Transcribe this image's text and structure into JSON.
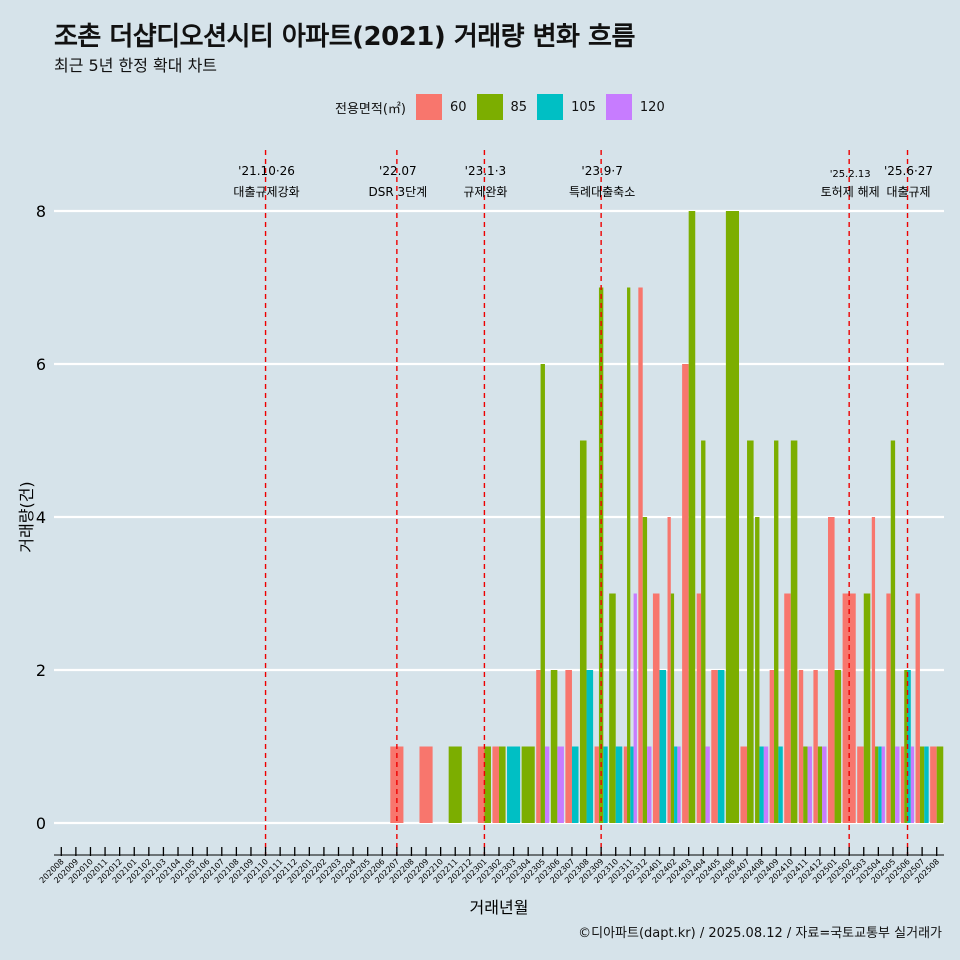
{
  "header": {
    "title": "조촌 더샵디오션시티 아파트(2021) 거래량 변화 흐름",
    "subtitle": "최근 5년 한정 확대 차트"
  },
  "legend": {
    "title": "전용면적(㎡)",
    "items": [
      {
        "label": "60",
        "color": "#f8766d"
      },
      {
        "label": "85",
        "color": "#7cae00"
      },
      {
        "label": "105",
        "color": "#00bfc4"
      },
      {
        "label": "120",
        "color": "#c77cff"
      }
    ]
  },
  "caption": "©디아파트(dapt.kr) / 2025.08.12 / 자료=국토교통부 실거래가",
  "chart_data": {
    "type": "bar",
    "xlabel": "거래년월",
    "ylabel": "거래량(건)",
    "ylim": [
      0,
      8
    ],
    "yticks": [
      0,
      2,
      4,
      6,
      8
    ],
    "grid": "horizontal",
    "legend_position": "top",
    "categories": [
      "202008",
      "202009",
      "202010",
      "202011",
      "202012",
      "202101",
      "202102",
      "202103",
      "202104",
      "202105",
      "202106",
      "202107",
      "202108",
      "202109",
      "202110",
      "202111",
      "202112",
      "202201",
      "202202",
      "202203",
      "202204",
      "202205",
      "202206",
      "202207",
      "202208",
      "202209",
      "202210",
      "202211",
      "202212",
      "202301",
      "202302",
      "202303",
      "202304",
      "202305",
      "202306",
      "202307",
      "202308",
      "202309",
      "202310",
      "202311",
      "202312",
      "202401",
      "202402",
      "202403",
      "202404",
      "202405",
      "202406",
      "202407",
      "202408",
      "202409",
      "202410",
      "202411",
      "202412",
      "202501",
      "202502",
      "202503",
      "202504",
      "202505",
      "202506",
      "202507",
      "202508"
    ],
    "series": [
      {
        "name": "60",
        "color": "#f8766d",
        "values": [
          0,
          0,
          0,
          0,
          0,
          0,
          0,
          0,
          0,
          0,
          0,
          0,
          0,
          0,
          0,
          0,
          0,
          0,
          0,
          0,
          0,
          0,
          0,
          1,
          0,
          1,
          0,
          0,
          0,
          1,
          1,
          0,
          0,
          2,
          0,
          2,
          0,
          1,
          0,
          1,
          7,
          3,
          4,
          6,
          3,
          2,
          0,
          1,
          0,
          2,
          3,
          2,
          2,
          4,
          3,
          1,
          4,
          3,
          1,
          3,
          1
        ]
      },
      {
        "name": "85",
        "color": "#7cae00",
        "values": [
          0,
          0,
          0,
          0,
          0,
          0,
          0,
          0,
          0,
          0,
          0,
          0,
          0,
          0,
          0,
          0,
          0,
          0,
          0,
          0,
          0,
          0,
          0,
          0,
          0,
          0,
          0,
          1,
          0,
          1,
          1,
          0,
          1,
          6,
          2,
          0,
          5,
          7,
          3,
          7,
          4,
          0,
          3,
          8,
          5,
          0,
          8,
          5,
          4,
          5,
          5,
          1,
          1,
          2,
          0,
          3,
          1,
          5,
          2,
          1,
          1
        ]
      },
      {
        "name": "105",
        "color": "#00bfc4",
        "values": [
          0,
          0,
          0,
          0,
          0,
          0,
          0,
          0,
          0,
          0,
          0,
          0,
          0,
          0,
          0,
          0,
          0,
          0,
          0,
          0,
          0,
          0,
          0,
          0,
          0,
          0,
          0,
          0,
          0,
          0,
          0,
          1,
          0,
          0,
          0,
          1,
          2,
          1,
          1,
          1,
          0,
          2,
          1,
          0,
          0,
          2,
          0,
          0,
          1,
          1,
          0,
          0,
          0,
          0,
          0,
          0,
          1,
          0,
          2,
          1,
          0
        ]
      },
      {
        "name": "120",
        "color": "#c77cff",
        "values": [
          0,
          0,
          0,
          0,
          0,
          0,
          0,
          0,
          0,
          0,
          0,
          0,
          0,
          0,
          0,
          0,
          0,
          0,
          0,
          0,
          0,
          0,
          0,
          0,
          0,
          0,
          0,
          0,
          0,
          0,
          0,
          0,
          0,
          1,
          1,
          0,
          0,
          0,
          0,
          3,
          1,
          0,
          1,
          0,
          1,
          0,
          0,
          0,
          1,
          0,
          0,
          1,
          1,
          0,
          0,
          0,
          1,
          1,
          1,
          0,
          0
        ]
      }
    ],
    "events": [
      {
        "month": "202110",
        "date": "'21.10·26",
        "label": "대출규제강화"
      },
      {
        "month": "202207",
        "date": "'22.07",
        "label": "DSR 3단계"
      },
      {
        "month": "202301",
        "date": "'23.1·3",
        "label": "규제완화"
      },
      {
        "month": "202309",
        "date": "'23.9·7",
        "label": "특례대출축소"
      },
      {
        "month": "202502",
        "date": "'25.2.13",
        "label": "토허제 해제"
      },
      {
        "month": "202506",
        "date": "'25.6·27",
        "label": "대출규제"
      }
    ]
  }
}
